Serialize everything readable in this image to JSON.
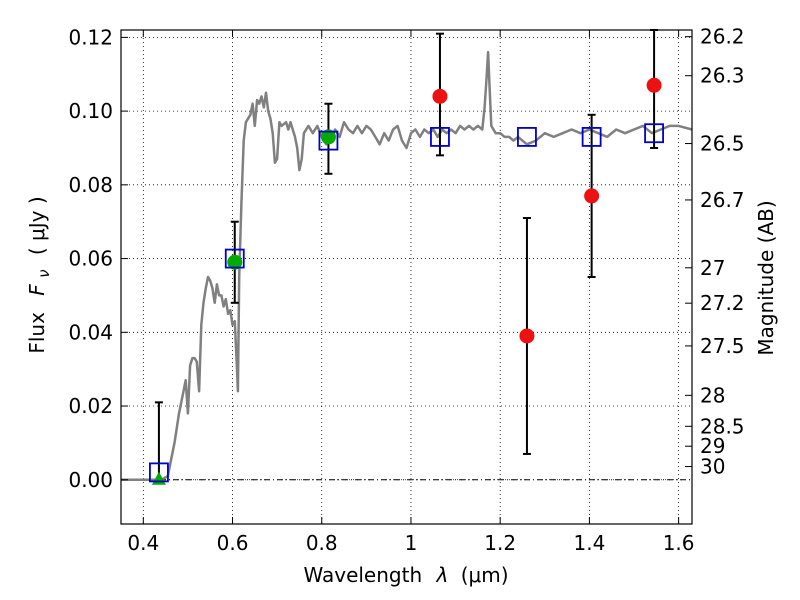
{
  "chart_data": {
    "type": "scatter",
    "title": "",
    "xlabel_text": "Wavelength",
    "xlabel_symbol": "λ",
    "xlabel_unit": "(μm)",
    "ylabel_text": "Flux",
    "ylabel_symbol": "F",
    "ylabel_subscript": "ν",
    "ylabel_unit": "( μJy )",
    "y2label": "Magnitude (AB)",
    "xlim": [
      0.35,
      1.63
    ],
    "ylim": [
      -0.012,
      0.122
    ],
    "xticks": [
      0.4,
      0.6,
      0.8,
      1.0,
      1.2,
      1.4,
      1.6
    ],
    "xtick_labels": [
      "0.4",
      "0.6",
      "0.8",
      "1",
      "1.2",
      "1.4",
      "1.6"
    ],
    "yticks": [
      0.0,
      0.02,
      0.04,
      0.06,
      0.08,
      0.1,
      0.12
    ],
    "ytick_labels": [
      "0.00",
      "0.02",
      "0.04",
      "0.06",
      "0.08",
      "0.10",
      "0.12"
    ],
    "mag_ticks": [
      {
        "label": "26.2",
        "flux": 0.1202
      },
      {
        "label": "26.3",
        "flux": 0.1096
      },
      {
        "label": "26.5",
        "flux": 0.0912
      },
      {
        "label": "26.7",
        "flux": 0.0759
      },
      {
        "label": "27",
        "flux": 0.0575
      },
      {
        "label": "27.2",
        "flux": 0.0479
      },
      {
        "label": "27.5",
        "flux": 0.0363
      },
      {
        "label": "28",
        "flux": 0.0229
      },
      {
        "label": "28.5",
        "flux": 0.0145
      },
      {
        "label": "29",
        "flux": 0.0091
      },
      {
        "label": "30",
        "flux": 0.0036
      }
    ],
    "grid": true,
    "colors": {
      "spectrum": "#808080",
      "model_box": "#0000cc",
      "green": "#00aa00",
      "red": "#ee1111",
      "zero_line": "#000000"
    },
    "spectrum": [
      [
        0.35,
        0.0
      ],
      [
        0.44,
        0.0
      ],
      [
        0.455,
        0.001
      ],
      [
        0.47,
        0.01
      ],
      [
        0.48,
        0.018
      ],
      [
        0.49,
        0.024
      ],
      [
        0.495,
        0.027
      ],
      [
        0.5,
        0.018
      ],
      [
        0.505,
        0.031
      ],
      [
        0.51,
        0.033
      ],
      [
        0.515,
        0.033
      ],
      [
        0.52,
        0.032
      ],
      [
        0.525,
        0.024
      ],
      [
        0.53,
        0.042
      ],
      [
        0.535,
        0.048
      ],
      [
        0.54,
        0.052
      ],
      [
        0.545,
        0.055
      ],
      [
        0.55,
        0.054
      ],
      [
        0.555,
        0.052
      ],
      [
        0.56,
        0.048
      ],
      [
        0.565,
        0.053
      ],
      [
        0.57,
        0.05
      ],
      [
        0.575,
        0.05
      ],
      [
        0.58,
        0.047
      ],
      [
        0.585,
        0.049
      ],
      [
        0.59,
        0.045
      ],
      [
        0.595,
        0.046
      ],
      [
        0.6,
        0.042
      ],
      [
        0.605,
        0.043
      ],
      [
        0.61,
        0.03
      ],
      [
        0.612,
        0.024
      ],
      [
        0.615,
        0.055
      ],
      [
        0.62,
        0.075
      ],
      [
        0.625,
        0.092
      ],
      [
        0.63,
        0.097
      ],
      [
        0.64,
        0.099
      ],
      [
        0.645,
        0.102
      ],
      [
        0.65,
        0.096
      ],
      [
        0.655,
        0.103
      ],
      [
        0.66,
        0.102
      ],
      [
        0.665,
        0.104
      ],
      [
        0.67,
        0.101
      ],
      [
        0.675,
        0.105
      ],
      [
        0.68,
        0.1
      ],
      [
        0.685,
        0.098
      ],
      [
        0.69,
        0.094
      ],
      [
        0.695,
        0.086
      ],
      [
        0.7,
        0.087
      ],
      [
        0.705,
        0.097
      ],
      [
        0.71,
        0.096
      ],
      [
        0.72,
        0.097
      ],
      [
        0.725,
        0.095
      ],
      [
        0.73,
        0.097
      ],
      [
        0.74,
        0.093
      ],
      [
        0.745,
        0.09
      ],
      [
        0.75,
        0.084
      ],
      [
        0.755,
        0.087
      ],
      [
        0.76,
        0.094
      ],
      [
        0.77,
        0.096
      ],
      [
        0.78,
        0.094
      ],
      [
        0.79,
        0.096
      ],
      [
        0.8,
        0.093
      ],
      [
        0.81,
        0.091
      ],
      [
        0.82,
        0.092
      ],
      [
        0.83,
        0.095
      ],
      [
        0.84,
        0.093
      ],
      [
        0.85,
        0.097
      ],
      [
        0.86,
        0.095
      ],
      [
        0.87,
        0.094
      ],
      [
        0.88,
        0.096
      ],
      [
        0.89,
        0.094
      ],
      [
        0.9,
        0.096
      ],
      [
        0.91,
        0.095
      ],
      [
        0.92,
        0.093
      ],
      [
        0.93,
        0.091
      ],
      [
        0.94,
        0.094
      ],
      [
        0.95,
        0.092
      ],
      [
        0.96,
        0.095
      ],
      [
        0.97,
        0.096
      ],
      [
        0.98,
        0.092
      ],
      [
        0.99,
        0.09
      ],
      [
        1.0,
        0.094
      ],
      [
        1.01,
        0.095
      ],
      [
        1.02,
        0.093
      ],
      [
        1.03,
        0.095
      ],
      [
        1.04,
        0.094
      ],
      [
        1.05,
        0.095
      ],
      [
        1.06,
        0.093
      ],
      [
        1.07,
        0.095
      ],
      [
        1.08,
        0.094
      ],
      [
        1.09,
        0.095
      ],
      [
        1.1,
        0.094
      ],
      [
        1.11,
        0.096
      ],
      [
        1.12,
        0.095
      ],
      [
        1.13,
        0.096
      ],
      [
        1.14,
        0.095
      ],
      [
        1.15,
        0.096
      ],
      [
        1.16,
        0.095
      ],
      [
        1.165,
        0.101
      ],
      [
        1.17,
        0.11
      ],
      [
        1.173,
        0.116
      ],
      [
        1.176,
        0.107
      ],
      [
        1.18,
        0.096
      ],
      [
        1.19,
        0.094
      ],
      [
        1.2,
        0.094
      ],
      [
        1.21,
        0.093
      ],
      [
        1.22,
        0.093
      ],
      [
        1.23,
        0.092
      ],
      [
        1.24,
        0.093
      ],
      [
        1.26,
        0.091
      ],
      [
        1.28,
        0.092
      ],
      [
        1.3,
        0.094
      ],
      [
        1.32,
        0.093
      ],
      [
        1.34,
        0.094
      ],
      [
        1.36,
        0.095
      ],
      [
        1.38,
        0.094
      ],
      [
        1.4,
        0.095
      ],
      [
        1.42,
        0.094
      ],
      [
        1.44,
        0.093
      ],
      [
        1.46,
        0.095
      ],
      [
        1.48,
        0.094
      ],
      [
        1.5,
        0.095
      ],
      [
        1.52,
        0.096
      ],
      [
        1.54,
        0.094
      ],
      [
        1.56,
        0.095
      ],
      [
        1.58,
        0.096
      ],
      [
        1.6,
        0.096
      ],
      [
        1.63,
        0.095
      ]
    ],
    "model_points": [
      {
        "x": 0.435,
        "y": 0.002
      },
      {
        "x": 0.605,
        "y": 0.06
      },
      {
        "x": 0.815,
        "y": 0.092
      },
      {
        "x": 1.065,
        "y": 0.093
      },
      {
        "x": 1.26,
        "y": 0.093
      },
      {
        "x": 1.405,
        "y": 0.093
      },
      {
        "x": 1.545,
        "y": 0.094
      }
    ],
    "green_triangle": {
      "x": 0.435,
      "y": 0.0,
      "err_low": 0.0,
      "err_high": 0.021
    },
    "green_points": [
      {
        "x": 0.605,
        "y": 0.059,
        "err_low": 0.048,
        "err_high": 0.07
      },
      {
        "x": 0.815,
        "y": 0.093,
        "err_low": 0.083,
        "err_high": 0.102
      }
    ],
    "red_points": [
      {
        "x": 1.065,
        "y": 0.104,
        "err_low": 0.088,
        "err_high": 0.121
      },
      {
        "x": 1.26,
        "y": 0.039,
        "err_low": 0.007,
        "err_high": 0.071
      },
      {
        "x": 1.405,
        "y": 0.077,
        "err_low": 0.055,
        "err_high": 0.099
      },
      {
        "x": 1.545,
        "y": 0.107,
        "err_low": 0.09,
        "err_high": 0.122
      }
    ]
  }
}
